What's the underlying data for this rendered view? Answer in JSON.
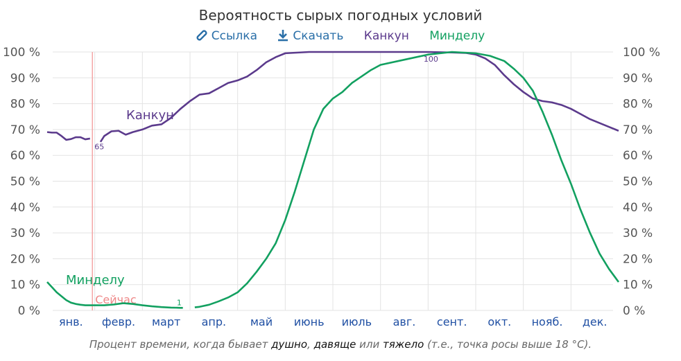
{
  "title": "Вероятность сырых погодных условий",
  "toolbar": {
    "link_label": "Ссылка",
    "download_label": "Скачать",
    "legend_cancun": "Канкун",
    "legend_mindelo": "Минделу"
  },
  "colors": {
    "cancun": "#5b3a8c",
    "mindelo": "#12a060",
    "now_line": "#f4a6a6",
    "grid": "#e3e3e3",
    "month_label": "#1f4fa3"
  },
  "chart_data": {
    "type": "line",
    "y_ticks_left": [
      "100 %",
      "90 %",
      "80 %",
      "70 %",
      "60 %",
      "50 %",
      "40 %",
      "30 %",
      "20 %",
      "10 %",
      "0 %"
    ],
    "y_ticks_right": [
      "100 %",
      "90 %",
      "80 %",
      "70 %",
      "60 %",
      "50 %",
      "40 %",
      "30 %",
      "20 %",
      "10 %",
      "0 %"
    ],
    "ylim": [
      0,
      100
    ],
    "xlim": [
      0,
      12
    ],
    "month_labels": [
      "янв.",
      "февр.",
      "март",
      "апр.",
      "май",
      "июнь",
      "июль",
      "авг.",
      "сент.",
      "окт.",
      "нояб.",
      "дек."
    ],
    "grid": true,
    "series": [
      {
        "name": "Канкун",
        "x": [
          0,
          0.1,
          0.2,
          0.3,
          0.4,
          0.5,
          0.6,
          0.7,
          0.8,
          0.9,
          1.05,
          1.2,
          1.35,
          1.5,
          1.65,
          1.8,
          2.0,
          2.2,
          2.4,
          2.6,
          2.8,
          3.0,
          3.2,
          3.4,
          3.6,
          3.8,
          4.0,
          4.2,
          4.4,
          4.6,
          4.8,
          5.0,
          5.5,
          6.0,
          6.5,
          7.0,
          7.5,
          8.0,
          8.5,
          8.8,
          9.0,
          9.2,
          9.4,
          9.6,
          9.8,
          10.0,
          10.2,
          10.4,
          10.6,
          10.8,
          11.0,
          11.2,
          11.4,
          11.6,
          11.8,
          12.0
        ],
        "y": [
          69,
          68.8,
          68.8,
          67.5,
          66,
          66.3,
          67,
          67,
          66.2,
          65,
          65.5,
          67.5,
          69.3,
          69.5,
          68,
          69,
          70,
          71.5,
          72,
          74.5,
          78,
          81,
          83.5,
          84,
          86,
          88,
          89,
          90.5,
          93,
          96,
          98,
          99.5,
          100,
          100,
          100,
          100,
          100,
          100,
          99.8,
          99.6,
          99.0,
          97.5,
          95.0,
          91.0,
          87.5,
          84.5,
          82.0,
          81.0,
          80.5,
          79.5,
          78.0,
          76.0,
          74.0,
          72.5,
          71.0,
          69.5
        ],
        "labels": [
          {
            "x": 0.95,
            "y": 65,
            "text": "65"
          },
          {
            "x": 8.0,
            "y": 100,
            "text": "100"
          }
        ],
        "inline_label": "Канкун"
      },
      {
        "name": "Минделу",
        "x": [
          0,
          0.1,
          0.2,
          0.3,
          0.4,
          0.5,
          0.6,
          0.7,
          0.8,
          1.0,
          1.2,
          1.4,
          1.6,
          1.8,
          2.0,
          2.2,
          2.4,
          2.6,
          2.8,
          3.0,
          3.2,
          3.4,
          3.6,
          3.8,
          4.0,
          4.2,
          4.4,
          4.6,
          4.8,
          5.0,
          5.2,
          5.4,
          5.6,
          5.8,
          6.0,
          6.2,
          6.4,
          6.6,
          6.8,
          7.0,
          7.5,
          8.0,
          8.5,
          9.0,
          9.3,
          9.6,
          9.8,
          10.0,
          10.2,
          10.4,
          10.6,
          10.8,
          11.0,
          11.2,
          11.4,
          11.6,
          11.8,
          12.0
        ],
        "y": [
          11,
          9,
          7,
          5.5,
          4,
          3,
          2.5,
          2.2,
          2,
          2,
          2,
          2.3,
          2.8,
          2.5,
          2,
          1.6,
          1.3,
          1.1,
          1,
          1,
          1.4,
          2.2,
          3.5,
          5,
          7,
          10.5,
          15,
          20,
          26,
          35,
          46,
          58,
          70,
          78,
          82,
          84.5,
          88,
          90.5,
          93,
          95,
          97,
          99,
          100,
          99.5,
          98.5,
          96.5,
          93.5,
          90,
          85,
          77,
          68,
          58,
          49,
          39,
          30,
          22,
          16,
          11
        ],
        "labels": [
          {
            "x": 2.7,
            "y": 1,
            "text": "1"
          }
        ],
        "inline_label": "Минделу"
      }
    ],
    "now_marker": {
      "x": 0.95,
      "label": "Сейчас"
    }
  },
  "caption": {
    "prefix": "Процент времени, когда бывает ",
    "w1": "душно",
    "sep1": ", ",
    "w2": "давяще",
    "sep2": " или ",
    "w3": "тяжело",
    "suffix": " (т.е., точка росы выше 18 °C)."
  }
}
